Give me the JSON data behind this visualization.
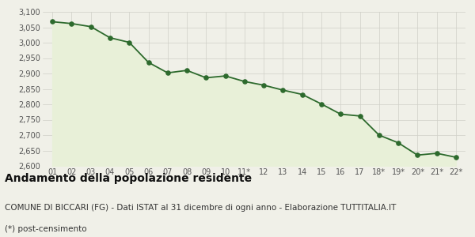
{
  "x_labels": [
    "01",
    "02",
    "03",
    "04",
    "05",
    "06",
    "07",
    "08",
    "09",
    "10",
    "11*",
    "12",
    "13",
    "14",
    "15",
    "16",
    "17",
    "18*",
    "19*",
    "20*",
    "21*",
    "22*"
  ],
  "y_values": [
    3068,
    3062,
    3052,
    3016,
    3001,
    2936,
    2902,
    2910,
    2886,
    2892,
    2874,
    2862,
    2846,
    2832,
    2801,
    2768,
    2762,
    2700,
    2675,
    2635,
    2641,
    2628
  ],
  "line_color": "#2d6a2d",
  "fill_color": "#e8f0d8",
  "marker_color": "#2d6a2d",
  "background_color": "#f0f0e8",
  "plot_bg_color": "#f0f0e8",
  "ylim": [
    2600,
    3100
  ],
  "yticks": [
    2600,
    2650,
    2700,
    2750,
    2800,
    2850,
    2900,
    2950,
    3000,
    3050,
    3100
  ],
  "title": "Andamento della popolazione residente",
  "subtitle": "COMUNE DI BICCARI (FG) - Dati ISTAT al 31 dicembre di ogni anno - Elaborazione TUTTITALIA.IT",
  "footnote": "(*) post-censimento",
  "title_fontsize": 10,
  "subtitle_fontsize": 7.5,
  "footnote_fontsize": 7.5,
  "grid_color": "#d0d0c8",
  "tick_color": "#555555"
}
